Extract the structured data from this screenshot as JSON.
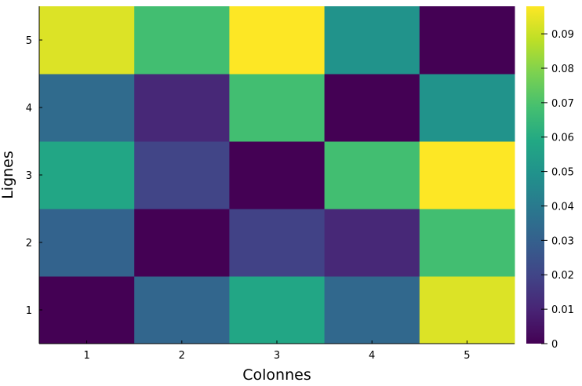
{
  "chart_data": {
    "type": "heatmap",
    "title": "",
    "xlabel": "Colonnes",
    "ylabel": "Lignes",
    "x_categories": [
      "1",
      "2",
      "3",
      "4",
      "5"
    ],
    "y_categories": [
      "1",
      "2",
      "3",
      "4",
      "5"
    ],
    "values": [
      [
        0.0,
        0.032,
        0.058,
        0.033,
        0.093
      ],
      [
        0.031,
        0.0,
        0.019,
        0.011,
        0.068
      ],
      [
        0.058,
        0.02,
        0.0,
        0.068,
        0.098
      ],
      [
        0.034,
        0.011,
        0.068,
        0.0,
        0.05
      ],
      [
        0.093,
        0.068,
        0.098,
        0.05,
        0.0
      ]
    ],
    "color_range": [
      0,
      0.098
    ],
    "colormap": "viridis",
    "colorbar_ticks": [
      0,
      0.01,
      0.02,
      0.03,
      0.04,
      0.05,
      0.06,
      0.07,
      0.08,
      0.09
    ],
    "colorbar_tick_labels": [
      "0",
      "0.01",
      "0.02",
      "0.03",
      "0.04",
      "0.05",
      "0.06",
      "0.07",
      "0.08",
      "0.09"
    ],
    "grid": false,
    "legend": "colorbar-right"
  }
}
